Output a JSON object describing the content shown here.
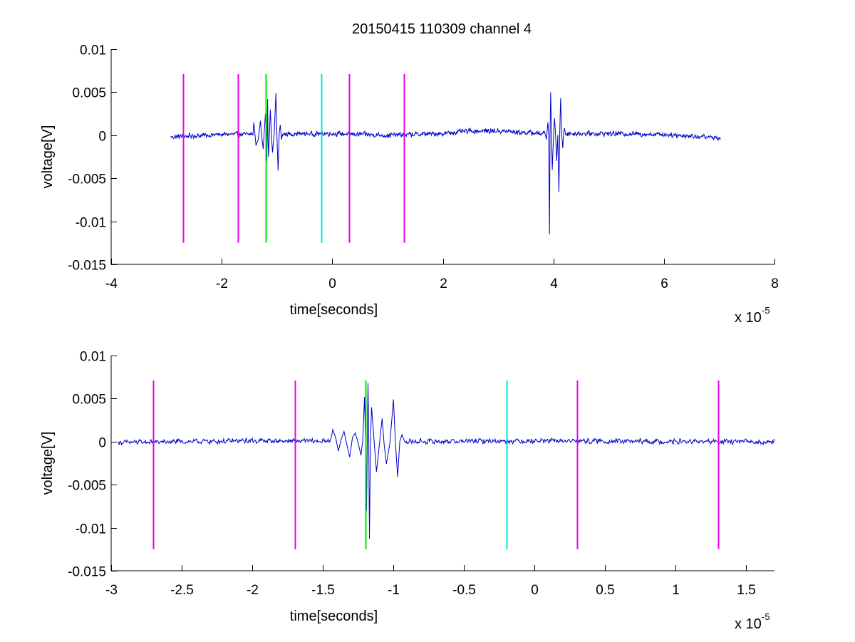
{
  "figure": {
    "title": "20150415 110309 channel 4"
  },
  "chart_data": [
    {
      "type": "line",
      "xlabel": "time[seconds]",
      "ylabel": "voltage[V]",
      "x_multiplier_label": {
        "base": "x 10",
        "exponent": "-5"
      },
      "xlim": [
        -4e-05,
        8e-05
      ],
      "ylim": [
        -0.015,
        0.01
      ],
      "xticks": [
        -4e-05,
        -2e-05,
        0,
        2e-05,
        4e-05,
        6e-05,
        8e-05
      ],
      "xtick_labels": [
        "-4",
        "-2",
        "0",
        "2",
        "4",
        "6",
        "8"
      ],
      "yticks": [
        0.01,
        0.005,
        0,
        -0.005,
        -0.01,
        -0.015
      ],
      "ytick_labels": [
        "0.01",
        "0.005",
        "0",
        "-0.005",
        "-0.01",
        "-0.015"
      ],
      "grid": false,
      "series": [
        {
          "color": "#0000c8",
          "x_range": [
            -2.92e-05,
            7.02e-05
          ],
          "baseline": [
            [
              -2.92e-05,
              -0.0002
            ],
            [
              -2e-05,
              0.0001
            ],
            [
              -1.6e-05,
              0.0001
            ],
            [
              0,
              0.0002
            ],
            [
              1e-05,
              0.0
            ],
            [
              2e-05,
              0.0002
            ],
            [
              2.5e-05,
              0.0005
            ],
            [
              3e-05,
              0.0005
            ],
            [
              3.8e-05,
              0.0002
            ],
            [
              5e-05,
              0.0002
            ],
            [
              6e-05,
              0.0001
            ],
            [
              7.02e-05,
              -0.0003
            ]
          ],
          "noise_amplitude": 0.00035,
          "bursts": [
            {
              "x": [
                -1.45e-05,
                -9e-06
              ],
              "spikes": [
                [
                  -1.42e-05,
                  0.0015
                ],
                [
                  -1.38e-05,
                  -0.0012
                ],
                [
                  -1.3e-05,
                  0.0017
                ],
                [
                  -1.25e-05,
                  -0.0016
                ],
                [
                  -1.21e-05,
                  0.0025
                ],
                [
                  -1.185e-05,
                  -0.003
                ],
                [
                  -1.17e-05,
                  0.0042
                ],
                [
                  -1.155e-05,
                  -0.0025
                ],
                [
                  -1.12e-05,
                  0.003
                ],
                [
                  -1.08e-05,
                  -0.002
                ],
                [
                  -1.02e-05,
                  0.0049
                ],
                [
                  -9.8e-06,
                  -0.0041
                ],
                [
                  -9.4e-06,
                  0.0012
                ]
              ]
            },
            {
              "x": [
                3.85e-05,
                4.25e-05
              ],
              "spikes": [
                [
                  3.9e-05,
                  0.0015
                ],
                [
                  3.93e-05,
                  -0.0115
                ],
                [
                  3.95e-05,
                  0.005
                ],
                [
                  3.98e-05,
                  -0.004
                ],
                [
                  4.02e-05,
                  0.002
                ],
                [
                  4.06e-05,
                  -0.003
                ],
                [
                  4.1e-05,
                  -0.0066
                ],
                [
                  4.13e-05,
                  0.0043
                ],
                [
                  4.17e-05,
                  -0.0015
                ],
                [
                  4.2e-05,
                  0.0008
                ]
              ]
            }
          ]
        }
      ],
      "markers": [
        {
          "x": -2.7e-05,
          "color": "#e600e6",
          "y_range": [
            -0.0125,
            0.0071
          ]
        },
        {
          "x": -1.7e-05,
          "color": "#e600e6",
          "y_range": [
            -0.0125,
            0.0071
          ]
        },
        {
          "x": -1.2e-05,
          "color": "#00e600",
          "y_range": [
            -0.0125,
            0.0071
          ]
        },
        {
          "x": -2e-06,
          "color": "#00e6e6",
          "y_range": [
            -0.0125,
            0.0071
          ]
        },
        {
          "x": 3e-06,
          "color": "#e600e6",
          "y_range": [
            -0.0125,
            0.0071
          ]
        },
        {
          "x": 1.3e-05,
          "color": "#e600e6",
          "y_range": [
            -0.0125,
            0.0071
          ]
        }
      ]
    },
    {
      "type": "line",
      "xlabel": "time[seconds]",
      "ylabel": "voltage[V]",
      "x_multiplier_label": {
        "base": "x 10",
        "exponent": "-5"
      },
      "xlim": [
        -3e-05,
        1.7e-05
      ],
      "ylim": [
        -0.015,
        0.01
      ],
      "xticks": [
        -3e-05,
        -2.5e-05,
        -2e-05,
        -1.5e-05,
        -1e-05,
        -5e-06,
        0,
        5e-06,
        1e-05,
        1.5e-05
      ],
      "xtick_labels": [
        "-3",
        "-2.5",
        "-2",
        "-1.5",
        "-1",
        "-0.5",
        "0",
        "0.5",
        "1",
        "1.5"
      ],
      "yticks": [
        0.01,
        0.005,
        0,
        -0.005,
        -0.01,
        -0.015
      ],
      "ytick_labels": [
        "0.01",
        "0.005",
        "0",
        "-0.005",
        "-0.01",
        "-0.015"
      ],
      "grid": false,
      "series": [
        {
          "color": "#0000c8",
          "x_range": [
            -2.95e-05,
            1.7e-05
          ],
          "baseline": [
            [
              -2.95e-05,
              -0.0001
            ],
            [
              -2e-05,
              0.0001
            ],
            [
              -1e-05,
              0.0
            ],
            [
              0,
              0.0001
            ],
            [
              1e-05,
              0.0
            ],
            [
              1.7e-05,
              0.0
            ]
          ],
          "noise_amplitude": 0.00035,
          "bursts": [
            {
              "x": [
                -1.45e-05,
                -9.2e-06
              ],
              "spikes": [
                [
                  -1.43e-05,
                  0.0014
                ],
                [
                  -1.39e-05,
                  -0.0011
                ],
                [
                  -1.35e-05,
                  0.0012
                ],
                [
                  -1.31e-05,
                  -0.0018
                ],
                [
                  -1.27e-05,
                  0.001
                ],
                [
                  -1.23e-05,
                  -0.0016
                ],
                [
                  -1.205e-05,
                  0.0052
                ],
                [
                  -1.19e-05,
                  -0.008
                ],
                [
                  -1.18e-05,
                  0.0068
                ],
                [
                  -1.17e-05,
                  -0.0113
                ],
                [
                  -1.155e-05,
                  0.004
                ],
                [
                  -1.12e-05,
                  -0.0035
                ],
                [
                  -1.08e-05,
                  0.0027
                ],
                [
                  -1.05e-05,
                  -0.0026
                ],
                [
                  -1e-05,
                  0.0049
                ],
                [
                  -9.7e-06,
                  -0.0041
                ],
                [
                  -9.4e-06,
                  0.0008
                ]
              ]
            }
          ]
        }
      ],
      "markers": [
        {
          "x": -2.7e-05,
          "color": "#e600e6",
          "y_range": [
            -0.0125,
            0.0071
          ]
        },
        {
          "x": -1.7e-05,
          "color": "#e600e6",
          "y_range": [
            -0.0125,
            0.0071
          ]
        },
        {
          "x": -1.2e-05,
          "color": "#00e600",
          "y_range": [
            -0.0125,
            0.0071
          ]
        },
        {
          "x": -2e-06,
          "color": "#00e6e6",
          "y_range": [
            -0.0125,
            0.0071
          ]
        },
        {
          "x": 3e-06,
          "color": "#e600e6",
          "y_range": [
            -0.0125,
            0.0071
          ]
        },
        {
          "x": 1.3e-05,
          "color": "#e600e6",
          "y_range": [
            -0.0125,
            0.0071
          ]
        }
      ]
    }
  ]
}
